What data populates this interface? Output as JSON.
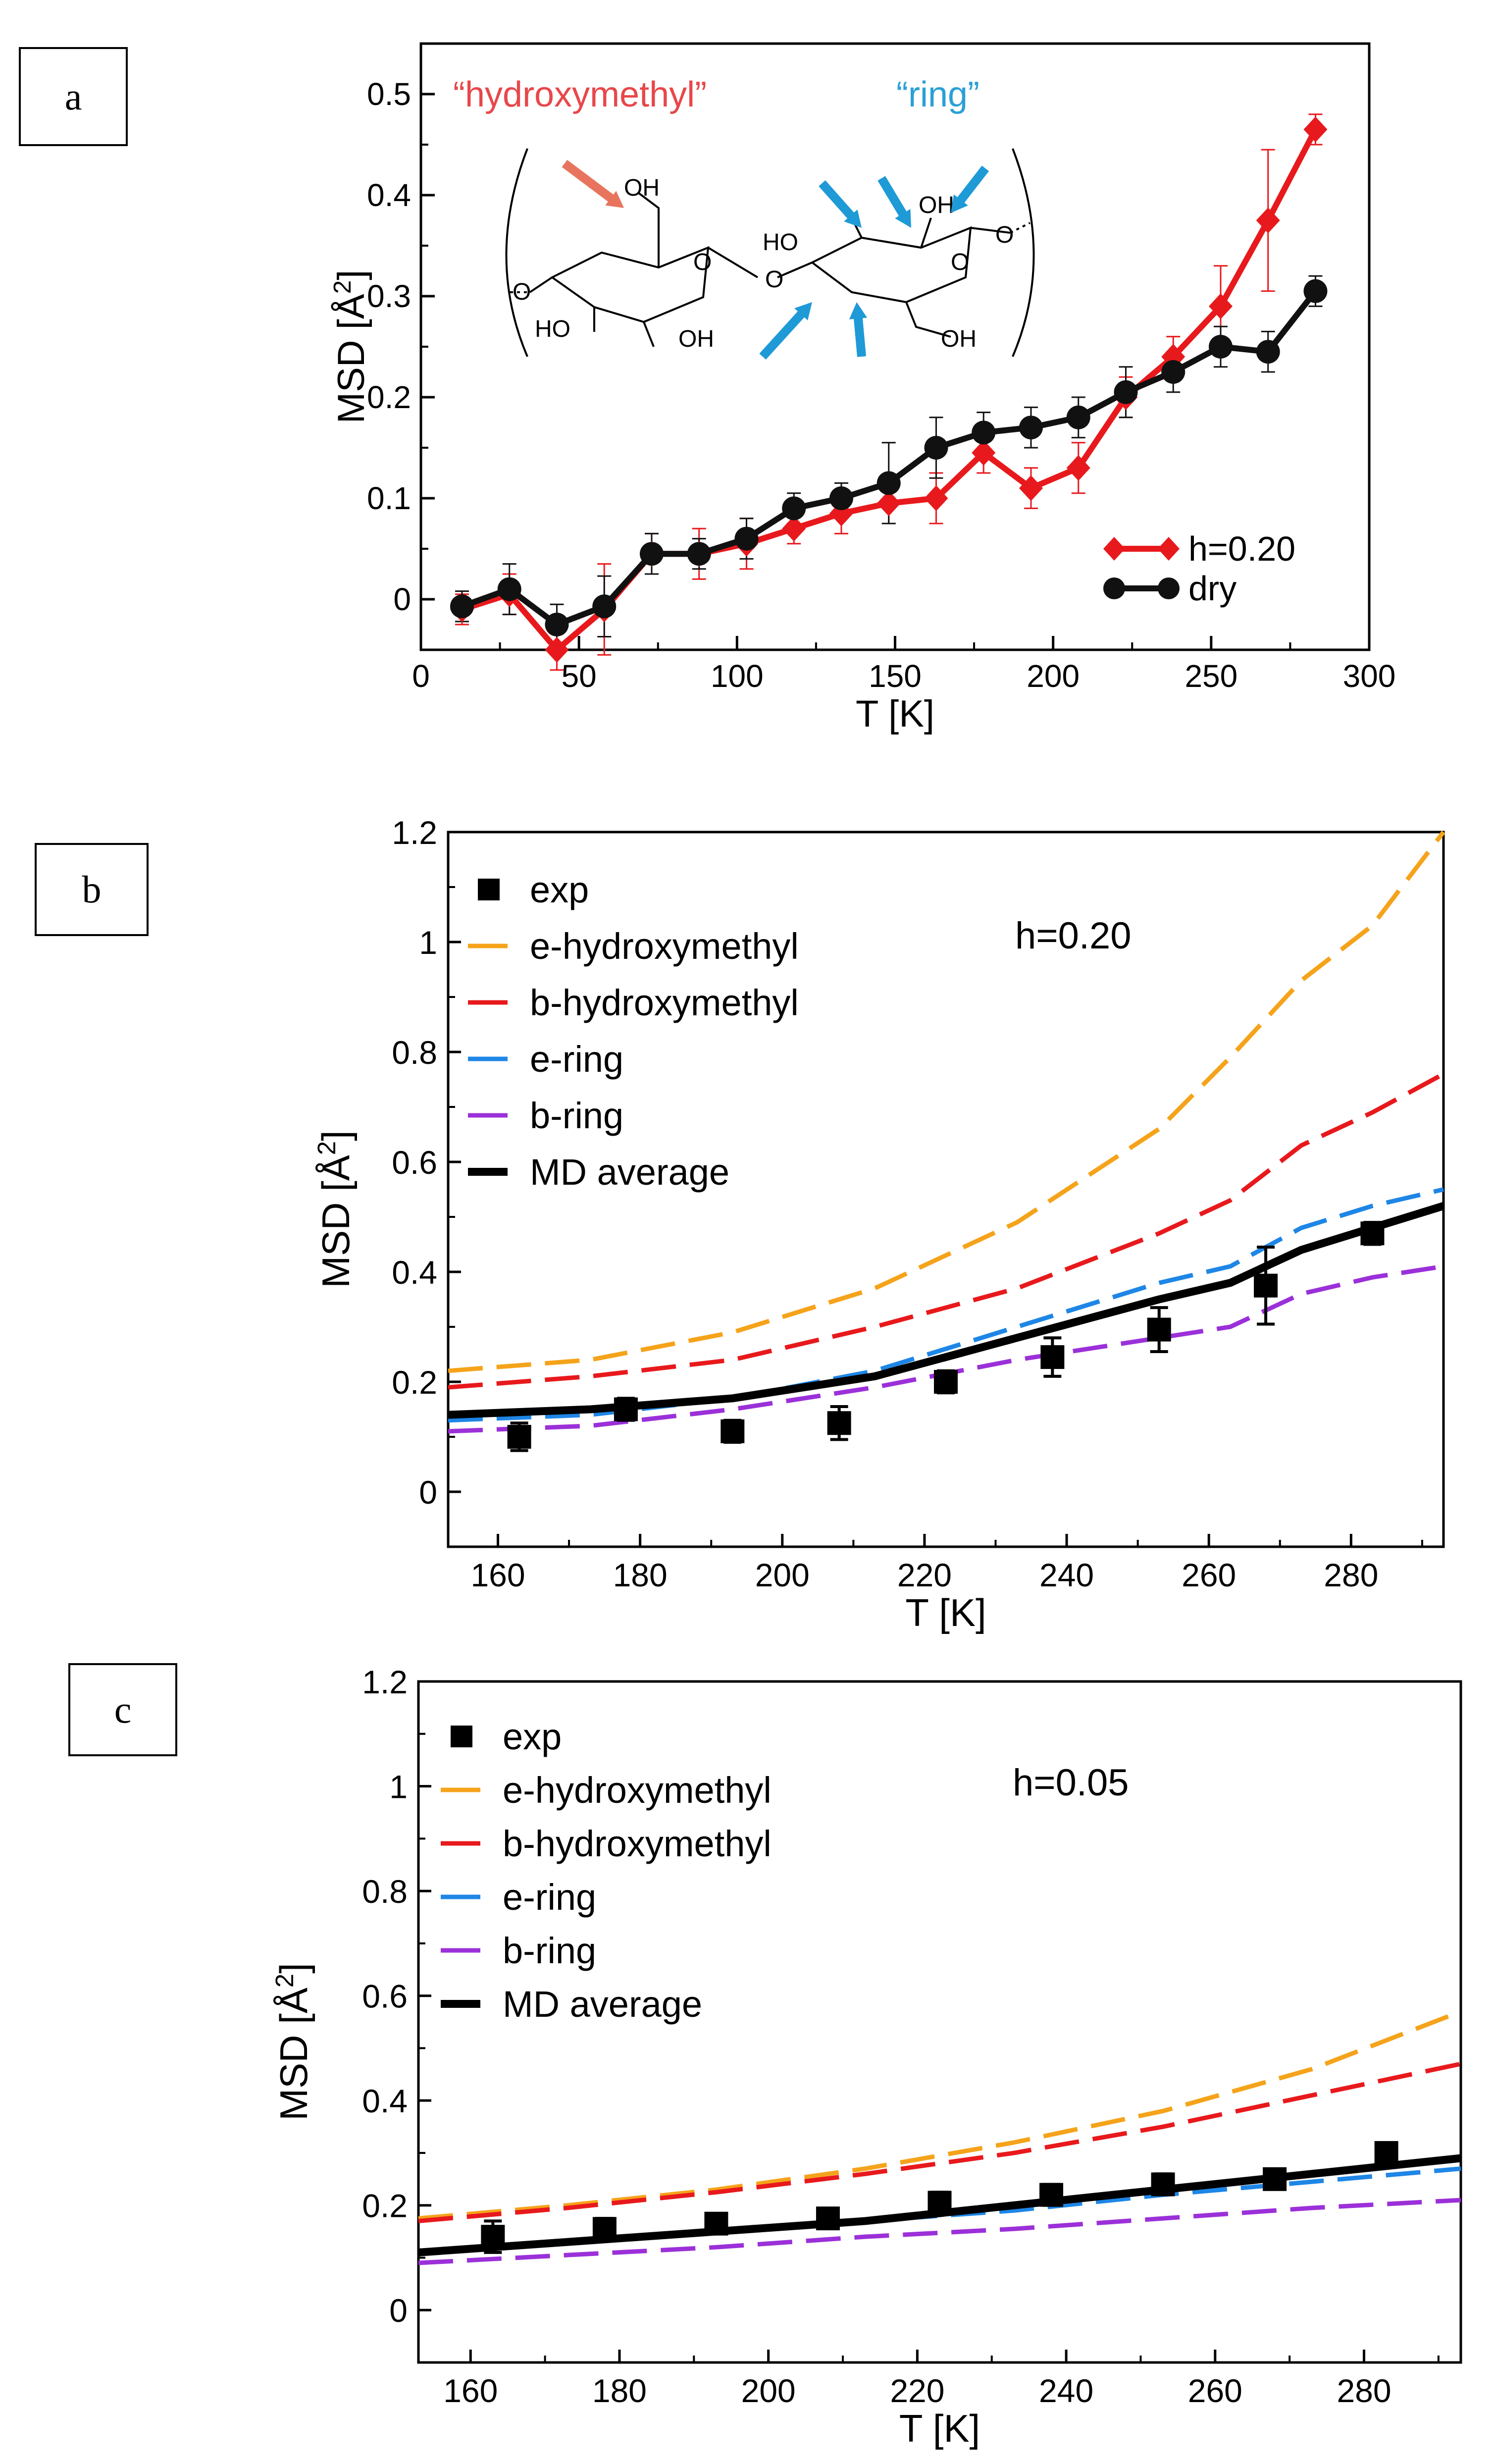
{
  "panels": [
    {
      "label": "a",
      "chart_data": {
        "type": "line",
        "title": "",
        "xlabel": "T [K]",
        "ylabel": "MSD [Å²]",
        "xlim": [
          0,
          300
        ],
        "ylim": [
          -0.05,
          0.55
        ],
        "x_ticks": [
          "0",
          "50",
          "100",
          "150",
          "200",
          "250",
          "300"
        ],
        "y_ticks": [
          "0",
          "0.1",
          "0.2",
          "0.3",
          "0.4",
          "0.5"
        ],
        "annotations": {
          "hydroxymethyl": "“hydroxymethyl”",
          "ring": "“ring”"
        },
        "series": [
          {
            "name": "h=0.20",
            "color": "#e8191c",
            "marker": "diamond",
            "x": [
              13,
              28,
              43,
              58,
              73,
              88,
              103,
              118,
              133,
              148,
              163,
              178,
              193,
              208,
              223,
              238,
              253,
              268,
              283
            ],
            "y": [
              -0.01,
              0.005,
              -0.05,
              -0.01,
              0.045,
              0.045,
              0.055,
              0.07,
              0.085,
              0.095,
              0.1,
              0.145,
              0.11,
              0.13,
              0.2,
              0.24,
              0.29,
              0.375,
              0.465
            ],
            "err": [
              0.015,
              0.02,
              0.02,
              0.045,
              0.02,
              0.025,
              0.025,
              0.015,
              0.02,
              0.02,
              0.025,
              0.02,
              0.02,
              0.025,
              0.02,
              0.02,
              0.04,
              0.07,
              0.015
            ]
          },
          {
            "name": "dry",
            "color": "#111111",
            "marker": "circle",
            "x": [
              13,
              28,
              43,
              58,
              73,
              88,
              103,
              118,
              133,
              148,
              163,
              178,
              193,
              208,
              223,
              238,
              253,
              268,
              283
            ],
            "y": [
              -0.007,
              0.01,
              -0.025,
              -0.007,
              0.045,
              0.045,
              0.06,
              0.09,
              0.1,
              0.115,
              0.15,
              0.165,
              0.17,
              0.18,
              0.205,
              0.225,
              0.25,
              0.245,
              0.305
            ],
            "err": [
              0.015,
              0.025,
              0.02,
              0.03,
              0.02,
              0.015,
              0.02,
              0.015,
              0.015,
              0.04,
              0.03,
              0.02,
              0.02,
              0.02,
              0.025,
              0.02,
              0.02,
              0.02,
              0.015
            ]
          }
        ]
      }
    },
    {
      "label": "b",
      "chart_data": {
        "type": "line",
        "title": "",
        "xlabel": "T [K]",
        "ylabel": "MSD [Å²]",
        "xlim": [
          153,
          293
        ],
        "ylim": [
          -0.1,
          1.2
        ],
        "x_ticks": [
          "160",
          "180",
          "200",
          "220",
          "240",
          "260",
          "280"
        ],
        "y_ticks": [
          "0",
          "0.2",
          "0.4",
          "0.6",
          "0.8",
          "1",
          "1.2"
        ],
        "annotation": "h=0.20",
        "legend": [
          "exp",
          "e-hydroxymethyl",
          "b-hydroxymethyl",
          "e-ring",
          "b-ring",
          "MD average"
        ],
        "series": [
          {
            "name": "e-hydroxymethyl",
            "color": "#f5a31a",
            "style": "dashed",
            "x": [
              153,
              173,
              193,
              213,
              233,
              253,
              263,
              273,
              283,
              293
            ],
            "y": [
              0.22,
              0.24,
              0.29,
              0.37,
              0.49,
              0.66,
              0.79,
              0.93,
              1.03,
              1.2
            ]
          },
          {
            "name": "b-hydroxymethyl",
            "color": "#e8191c",
            "style": "dashed",
            "x": [
              153,
              173,
              193,
              213,
              233,
              253,
              263,
              273,
              283,
              293
            ],
            "y": [
              0.19,
              0.21,
              0.24,
              0.3,
              0.37,
              0.47,
              0.53,
              0.63,
              0.69,
              0.76
            ]
          },
          {
            "name": "e-ring",
            "color": "#1e86e6",
            "style": "dashed",
            "x": [
              153,
              173,
              193,
              213,
              233,
              253,
              263,
              273,
              283,
              293
            ],
            "y": [
              0.13,
              0.14,
              0.17,
              0.22,
              0.3,
              0.38,
              0.41,
              0.48,
              0.52,
              0.55
            ]
          },
          {
            "name": "b-ring",
            "color": "#9b30d9",
            "style": "dashed",
            "x": [
              153,
              173,
              193,
              213,
              233,
              253,
              263,
              273,
              283,
              293
            ],
            "y": [
              0.11,
              0.12,
              0.15,
              0.19,
              0.24,
              0.28,
              0.3,
              0.36,
              0.39,
              0.41
            ]
          },
          {
            "name": "MD average",
            "color": "#000000",
            "style": "solid",
            "x": [
              153,
              173,
              193,
              213,
              233,
              253,
              263,
              273,
              283,
              293
            ],
            "y": [
              0.14,
              0.15,
              0.17,
              0.21,
              0.28,
              0.35,
              0.38,
              0.44,
              0.48,
              0.52
            ]
          }
        ],
        "exp": {
          "x": [
            163,
            178,
            193,
            208,
            223,
            238,
            253,
            268,
            283
          ],
          "y": [
            0.1,
            0.15,
            0.11,
            0.125,
            0.2,
            0.245,
            0.295,
            0.375,
            0.47
          ],
          "err": [
            0.025,
            0.02,
            0.02,
            0.03,
            0.02,
            0.035,
            0.04,
            0.07,
            0.02
          ]
        }
      }
    },
    {
      "label": "c",
      "chart_data": {
        "type": "line",
        "title": "",
        "xlabel": "T [K]",
        "ylabel": "MSD [Å²]",
        "xlim": [
          153,
          293
        ],
        "ylim": [
          -0.1,
          1.2
        ],
        "x_ticks": [
          "160",
          "180",
          "200",
          "220",
          "240",
          "260",
          "280"
        ],
        "y_ticks": [
          "0",
          "0.2",
          "0.4",
          "0.6",
          "0.8",
          "1",
          "1.2"
        ],
        "annotation": "h=0.05",
        "legend": [
          "exp",
          "e-hydroxymethyl",
          "b-hydroxymethyl",
          "e-ring",
          "b-ring",
          "MD average"
        ],
        "series": [
          {
            "name": "e-hydroxymethyl",
            "color": "#f5a31a",
            "style": "dashed",
            "x": [
              153,
              173,
              193,
              213,
              233,
              253,
              273,
              293
            ],
            "y": [
              0.175,
              0.2,
              0.23,
              0.27,
              0.32,
              0.38,
              0.46,
              0.57
            ]
          },
          {
            "name": "b-hydroxymethyl",
            "color": "#e8191c",
            "style": "dashed",
            "x": [
              153,
              173,
              193,
              213,
              233,
              253,
              273,
              293
            ],
            "y": [
              0.17,
              0.195,
              0.225,
              0.26,
              0.3,
              0.35,
              0.41,
              0.47
            ]
          },
          {
            "name": "e-ring",
            "color": "#1e86e6",
            "style": "dashed",
            "x": [
              153,
              173,
              193,
              213,
              233,
              253,
              273,
              293
            ],
            "y": [
              0.11,
              0.13,
              0.15,
              0.17,
              0.19,
              0.22,
              0.245,
              0.27
            ]
          },
          {
            "name": "b-ring",
            "color": "#9b30d9",
            "style": "dashed",
            "x": [
              153,
              173,
              193,
              213,
              233,
              253,
              273,
              293
            ],
            "y": [
              0.09,
              0.105,
              0.12,
              0.14,
              0.155,
              0.175,
              0.195,
              0.21
            ]
          },
          {
            "name": "MD average",
            "color": "#000000",
            "style": "solid",
            "x": [
              153,
              173,
              193,
              213,
              233,
              253,
              273,
              293
            ],
            "y": [
              0.11,
              0.13,
              0.15,
              0.17,
              0.2,
              0.23,
              0.26,
              0.29
            ]
          }
        ],
        "exp": {
          "x": [
            163,
            178,
            193,
            208,
            223,
            238,
            253,
            268,
            283
          ],
          "y": [
            0.14,
            0.155,
            0.165,
            0.175,
            0.205,
            0.22,
            0.24,
            0.25,
            0.3
          ],
          "err": [
            0.03,
            0.02,
            0.015,
            0.015,
            0.02,
            0.02,
            0.02,
            0.015,
            0.01
          ]
        }
      }
    }
  ]
}
